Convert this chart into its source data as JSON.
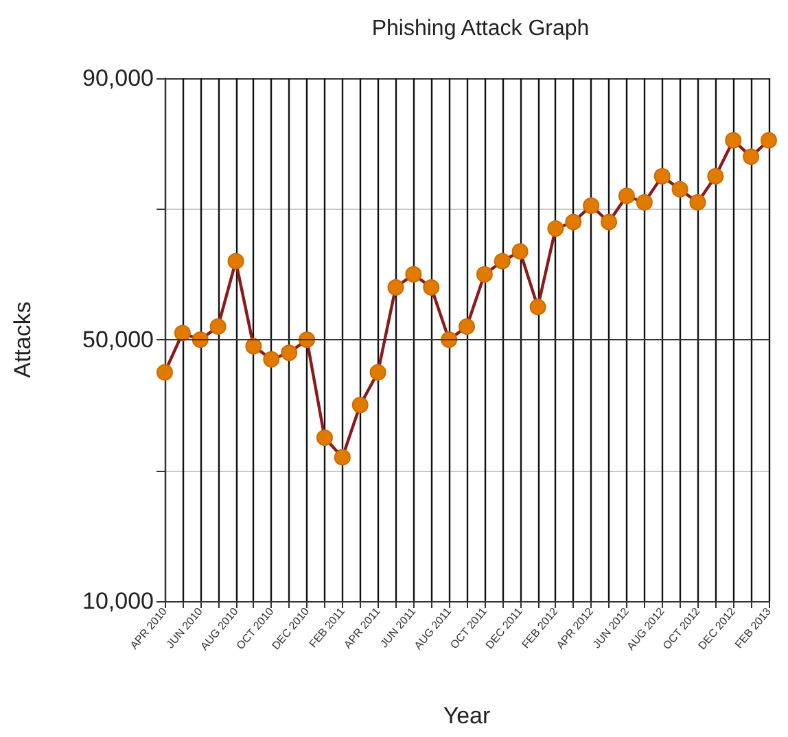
{
  "chart_data": {
    "type": "line",
    "title": "Phishing Attack Graph",
    "xlabel": "Year",
    "ylabel": "Attacks",
    "categories": [
      "APR 2010",
      null,
      "JUN 2010",
      null,
      "AUG 2010",
      null,
      "OCT 2010",
      null,
      "DEC 2010",
      null,
      "FEB 2011",
      null,
      "APR 2011",
      null,
      "JUN 2011",
      null,
      "AUG 2011",
      null,
      "OCT 2011",
      null,
      "DEC 2011",
      null,
      "FEB 2012",
      null,
      "APR 2012",
      null,
      "JUN 2012",
      null,
      "AUG 2012",
      null,
      "OCT 2012",
      null,
      "DEC 2012",
      null,
      "FEB 2013"
    ],
    "series": [
      {
        "color": "#8b1a1a",
        "values": [
          45000,
          51000,
          50000,
          52000,
          62000,
          49000,
          47000,
          48000,
          50000,
          35000,
          32000,
          40000,
          45000,
          58000,
          60000,
          58000,
          50000,
          52000,
          60000,
          62000,
          63500,
          55000,
          67000,
          68000,
          70500,
          68000,
          72000,
          71000,
          75000,
          73000,
          71000,
          75000,
          80500,
          78000,
          80500
        ]
      }
    ],
    "ylim": [
      10000,
      90000
    ],
    "yticks": [
      {
        "value": 10000,
        "label": "10,000"
      },
      {
        "value": 30000,
        "label": null
      },
      {
        "value": 50000,
        "label": "50,000"
      },
      {
        "value": 70000,
        "label": null
      },
      {
        "value": 90000,
        "label": "90,000"
      }
    ],
    "ref_lines": [
      {
        "axis": "y",
        "value": 50000,
        "color": "#333333",
        "line_style": "solid"
      }
    ],
    "grid": true,
    "marker": "circle",
    "line_style": "solid"
  }
}
